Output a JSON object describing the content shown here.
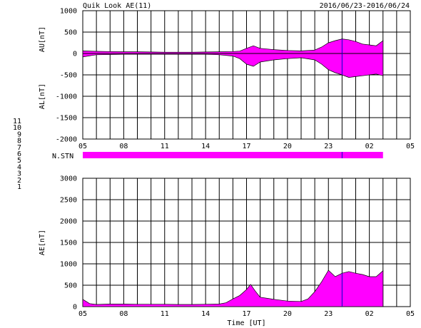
{
  "header": {
    "title": "Quik Look AE(11)",
    "date_range": "2016/06/23-2016/06/24"
  },
  "colors": {
    "fill": "#ff00ff",
    "grid": "#000000",
    "cursor": "#0000cc",
    "ticks": "#000000"
  },
  "chart_data": [
    {
      "type": "area",
      "name": "AU-AL",
      "ylabel_upper": "AU[nT]",
      "ylabel_lower": "AL[nT]",
      "ylim": [
        -2000,
        1000
      ],
      "yticks": [
        1000,
        500,
        0,
        -500,
        -1000,
        -1500,
        -2000
      ],
      "x_hours": [
        5,
        6,
        7,
        8,
        9,
        10,
        11,
        12,
        13,
        14,
        15,
        16,
        16.5,
        17,
        17.5,
        18,
        19,
        20,
        21,
        22,
        22.5,
        23,
        23.5,
        24,
        24.5,
        25,
        25.5,
        26,
        26.5,
        27
      ],
      "au": [
        60,
        50,
        45,
        40,
        40,
        35,
        30,
        30,
        30,
        35,
        40,
        45,
        55,
        120,
        180,
        120,
        90,
        70,
        60,
        80,
        150,
        250,
        300,
        340,
        320,
        280,
        220,
        200,
        180,
        300
      ],
      "al": [
        -80,
        -30,
        -25,
        -20,
        -20,
        -20,
        -20,
        -20,
        -20,
        -20,
        -30,
        -60,
        -120,
        -250,
        -300,
        -200,
        -150,
        -120,
        -100,
        -150,
        -250,
        -380,
        -450,
        -500,
        -560,
        -540,
        -520,
        -500,
        -480,
        -520
      ]
    },
    {
      "type": "area",
      "name": "AE",
      "ylabel": "AE[nT]",
      "xlabel": "Time [UT]",
      "ylim": [
        0,
        3000
      ],
      "yticks": [
        3000,
        2500,
        2000,
        1500,
        1000,
        500,
        0
      ],
      "x_hours": [
        5,
        5.5,
        6,
        7,
        8,
        9,
        10,
        11,
        12,
        13,
        14,
        15,
        15.5,
        16,
        16.5,
        17,
        17.3,
        17.6,
        18,
        19,
        20,
        21,
        21.5,
        22,
        22.5,
        23,
        23.5,
        24,
        24.5,
        25,
        25.5,
        26,
        26.5,
        27
      ],
      "values": [
        170,
        70,
        50,
        60,
        60,
        55,
        55,
        55,
        50,
        50,
        55,
        60,
        90,
        180,
        260,
        400,
        520,
        380,
        220,
        170,
        130,
        120,
        180,
        350,
        580,
        850,
        700,
        780,
        820,
        780,
        750,
        700,
        700,
        840
      ]
    }
  ],
  "x_axis": {
    "range_hours": [
      5,
      29
    ],
    "tick_labels": [
      "05",
      "08",
      "11",
      "14",
      "17",
      "20",
      "23",
      "02",
      "05"
    ],
    "tick_hours": [
      5,
      8,
      11,
      14,
      17,
      20,
      23,
      26,
      29
    ],
    "cursor_hour": 24
  },
  "station_bar": {
    "label": "N.STN",
    "range_hours": [
      5,
      27
    ]
  },
  "station_legend": [
    {
      "label": "11",
      "color": "#00ffff"
    },
    {
      "label": "10",
      "color": "#ff00ff"
    },
    {
      "label": "9",
      "color": "#0000cc"
    },
    {
      "label": "8",
      "color": "#ffd700"
    },
    {
      "label": "7",
      "color": "#cccccc"
    },
    {
      "label": "6",
      "color": "#ff0000"
    },
    {
      "label": "5",
      "color": "#999999"
    },
    {
      "label": "4",
      "color": "#aaaaaa"
    },
    {
      "label": "3",
      "color": "#00aaaa"
    },
    {
      "label": "2",
      "color": "#aa00aa"
    },
    {
      "label": "1",
      "color": "#0000aa"
    }
  ]
}
